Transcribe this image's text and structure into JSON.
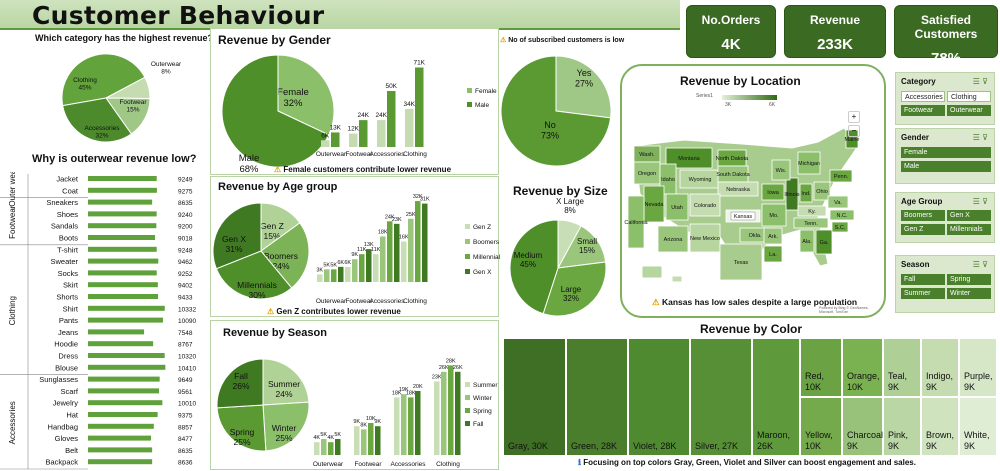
{
  "title": "Customer Behaviour",
  "kpis": [
    {
      "label": "No.Orders",
      "value": "4K"
    },
    {
      "label": "Revenue",
      "value": "233K"
    },
    {
      "label": "Satisfied Customers",
      "value": "78%"
    }
  ],
  "headings": {
    "category_q": "Which category has the highest revenue?",
    "outerwear_q": "Why is outerwear revenue low?",
    "gender": "Revenue by Gender",
    "age": "Revenue by Age group",
    "season": "Revenue by Season",
    "subscribed": "No of subscribed customers is low",
    "size": "Revenue by Size",
    "location": "Revenue by Location",
    "color": "Revenue by Color"
  },
  "notes": {
    "gender": "Female customers contribute lower revenue",
    "age": "Gen Z contributes lower revenue",
    "location": "Kansas has low sales despite a large population",
    "color": "Focusing on top colors Gray, Green, Violet and Silver can boost engagement and sales."
  },
  "map": {
    "legend_series": "Series1",
    "legend_min": "3K",
    "legend_max": "6K",
    "states": [
      "Wash.",
      "Montana",
      "Oregon",
      "Idaho",
      "Wyoming",
      "North Dakota",
      "South Dakota",
      "Nebraska",
      "Nevada",
      "Utah",
      "Colorado",
      "Kansas",
      "California",
      "Arizona",
      "New Mexico",
      "Texas",
      "Okla.",
      "Iowa",
      "Illinois",
      "Ohio",
      "Michigan",
      "Maine",
      "Penn.",
      "Ky.",
      "Tenn.",
      "Ala.",
      "Ga.",
      "Mo.",
      "Ark.",
      "La.",
      "Va.",
      "N.C.",
      "S.C.",
      "Wis.",
      "Ind."
    ],
    "credit": "Powered by Bing © GeoNames, Microsoft, TomTom"
  },
  "slicers": [
    {
      "name": "Category",
      "items": [
        "Accessories",
        "Clothing",
        "Footwear",
        "Outerwear"
      ]
    },
    {
      "name": "Gender",
      "items": [
        "Female",
        "Male"
      ]
    },
    {
      "name": "Age Group",
      "items": [
        "Boomers",
        "Gen X",
        "Gen Z",
        "Millennials"
      ]
    },
    {
      "name": "Season",
      "items": [
        "Fall",
        "Spring",
        "Summer",
        "Winter"
      ]
    }
  ],
  "chart_data": [
    {
      "type": "pie",
      "id": "category_pie",
      "labels": [
        "Clothing",
        "Outerwear",
        "Footwear",
        "Accessories"
      ],
      "values": [
        45,
        8,
        15,
        32
      ],
      "data_labels": [
        "Clothing\n45%",
        "Outerwear\n8%",
        "Footwear\n15%",
        "Accessories\n32%"
      ]
    },
    {
      "type": "bar",
      "id": "items_bar",
      "orientation": "horizontal",
      "groups": [
        {
          "name": "Outer wear",
          "items": [
            "Jacket",
            "Coat"
          ]
        },
        {
          "name": "Footwear",
          "items": [
            "Sneakers",
            "Shoes",
            "Sandals",
            "Boots"
          ]
        },
        {
          "name": "Clothing",
          "items": [
            "T-shirt",
            "Sweater",
            "Socks",
            "Skirt",
            "Shorts",
            "Shirt",
            "Pants",
            "Jeans",
            "Hoodie",
            "Dress",
            "Blouse"
          ]
        },
        {
          "name": "Accessories",
          "items": [
            "Sunglasses",
            "Scarf",
            "Jewelry",
            "Hat",
            "Handbag",
            "Gloves",
            "Belt",
            "Backpack"
          ]
        }
      ],
      "categories": [
        "Jacket",
        "Coat",
        "Sneakers",
        "Shoes",
        "Sandals",
        "Boots",
        "T-shirt",
        "Sweater",
        "Socks",
        "Skirt",
        "Shorts",
        "Shirt",
        "Pants",
        "Jeans",
        "Hoodie",
        "Dress",
        "Blouse",
        "Sunglasses",
        "Scarf",
        "Jewelry",
        "Hat",
        "Handbag",
        "Gloves",
        "Belt",
        "Backpack"
      ],
      "values": [
        9249,
        9275,
        8635,
        9240,
        9200,
        9018,
        9248,
        9462,
        9252,
        9402,
        9433,
        10332,
        10090,
        7548,
        8767,
        10320,
        10410,
        9649,
        9561,
        10010,
        9375,
        8857,
        8477,
        8635,
        8636
      ]
    },
    {
      "type": "pie",
      "id": "gender_pie",
      "labels": [
        "Female",
        "Male"
      ],
      "values": [
        32,
        68
      ],
      "data_labels": [
        "Female\n32%",
        "Male\n68%"
      ]
    },
    {
      "type": "bar",
      "id": "gender_bar",
      "categories": [
        "Outerwear",
        "Footwear",
        "Accessories",
        "Clothing"
      ],
      "series": [
        {
          "name": "Female",
          "values": [
            6,
            12,
            24,
            34
          ]
        },
        {
          "name": "Male",
          "values": [
            13,
            24,
            50,
            71
          ]
        }
      ],
      "data_labels": [
        [
          "6K",
          "12K",
          "24K",
          "34K"
        ],
        [
          "13K",
          "24K",
          "50K",
          "71K"
        ]
      ],
      "ylim": [
        0,
        75
      ]
    },
    {
      "type": "pie",
      "id": "age_pie",
      "labels": [
        "Gen Z",
        "Boomers",
        "Millennials",
        "Gen X"
      ],
      "values": [
        15,
        24,
        30,
        31
      ],
      "data_labels": [
        "Gen Z\n15%",
        "Boomers\n24%",
        "Millennials\n30%",
        "Gen X\n31%"
      ]
    },
    {
      "type": "bar",
      "id": "age_bar",
      "categories": [
        "Outerwear",
        "Footwear",
        "Accessories",
        "Clothing"
      ],
      "series": [
        {
          "name": "Gen Z",
          "values": [
            3,
            6,
            11,
            16
          ]
        },
        {
          "name": "Boomers",
          "values": [
            5,
            9,
            18,
            25
          ]
        },
        {
          "name": "Millennials",
          "values": [
            5,
            11,
            24,
            32
          ]
        },
        {
          "name": "Gen X",
          "values": [
            6,
            13,
            23,
            31
          ]
        }
      ],
      "data_labels": [
        [
          "3K",
          "6K",
          "11K",
          "16K"
        ],
        [
          "5K",
          "9K",
          "18K",
          "25K"
        ],
        [
          "5K",
          "11K",
          "24K",
          "32K"
        ],
        [
          "6K",
          "13K",
          "23K",
          "31K"
        ]
      ],
      "ylim": [
        0,
        34
      ]
    },
    {
      "type": "pie",
      "id": "season_pie",
      "labels": [
        "Summer",
        "Winter",
        "Spring",
        "Fall"
      ],
      "values": [
        24,
        25,
        25,
        26
      ],
      "data_labels": [
        "Summer\n24%",
        "Winter\n25%",
        "Spring\n25%",
        "Fall\n26%"
      ]
    },
    {
      "type": "bar",
      "id": "season_bar",
      "categories": [
        "Outerwear",
        "Footwear",
        "Accessories",
        "Clothing"
      ],
      "series": [
        {
          "name": "Summer",
          "values": [
            4,
            9,
            18,
            23
          ]
        },
        {
          "name": "Winter",
          "values": [
            5,
            8,
            19,
            26
          ]
        },
        {
          "name": "Spring",
          "values": [
            4,
            10,
            18,
            28
          ]
        },
        {
          "name": "Fall",
          "values": [
            5,
            9,
            20,
            26
          ]
        }
      ],
      "data_labels": [
        [
          "4K",
          "9K",
          "18K",
          "23K"
        ],
        [
          "5K",
          "8K",
          "19K",
          "26K"
        ],
        [
          "4K",
          "10K",
          "18K",
          "28K"
        ],
        [
          "5K",
          "9K",
          "20K",
          "26K"
        ]
      ],
      "ylim": [
        0,
        30
      ]
    },
    {
      "type": "pie",
      "id": "subscribed_pie",
      "labels": [
        "Yes",
        "No"
      ],
      "values": [
        27,
        73
      ],
      "data_labels": [
        "Yes\n27%",
        "No\n73%"
      ]
    },
    {
      "type": "pie",
      "id": "size_pie",
      "labels": [
        "X Large",
        "Small",
        "Large",
        "Medium"
      ],
      "values": [
        8,
        15,
        32,
        45
      ],
      "data_labels": [
        "X Large\n8%",
        "Small\n15%",
        "Large\n32%",
        "Medium\n45%"
      ]
    },
    {
      "type": "heatmap",
      "id": "color_treemap",
      "categories": [
        "Gray",
        "Green",
        "Violet",
        "Silver",
        "Maroon",
        "Red",
        "Yellow",
        "Orange",
        "Charcoal",
        "Teal",
        "Pink",
        "Indigo",
        "Brown",
        "Purple",
        "White"
      ],
      "values": [
        30,
        28,
        28,
        27,
        26,
        10,
        10,
        10,
        9,
        9,
        9,
        9,
        9,
        9,
        9
      ],
      "data_labels": [
        "Gray, 30K",
        "Green, 28K",
        "Violet, 28K",
        "Silver, 27K",
        "Maroon, 26K",
        "Red, 10K",
        "Yellow, 10K",
        "Orange, 10K",
        "Charcoal, 9K",
        "Teal, 9K",
        "Pink, 9K",
        "Indigo, 9K",
        "Brown, 9K",
        "Purple, 9K",
        "White, 9K"
      ]
    }
  ]
}
